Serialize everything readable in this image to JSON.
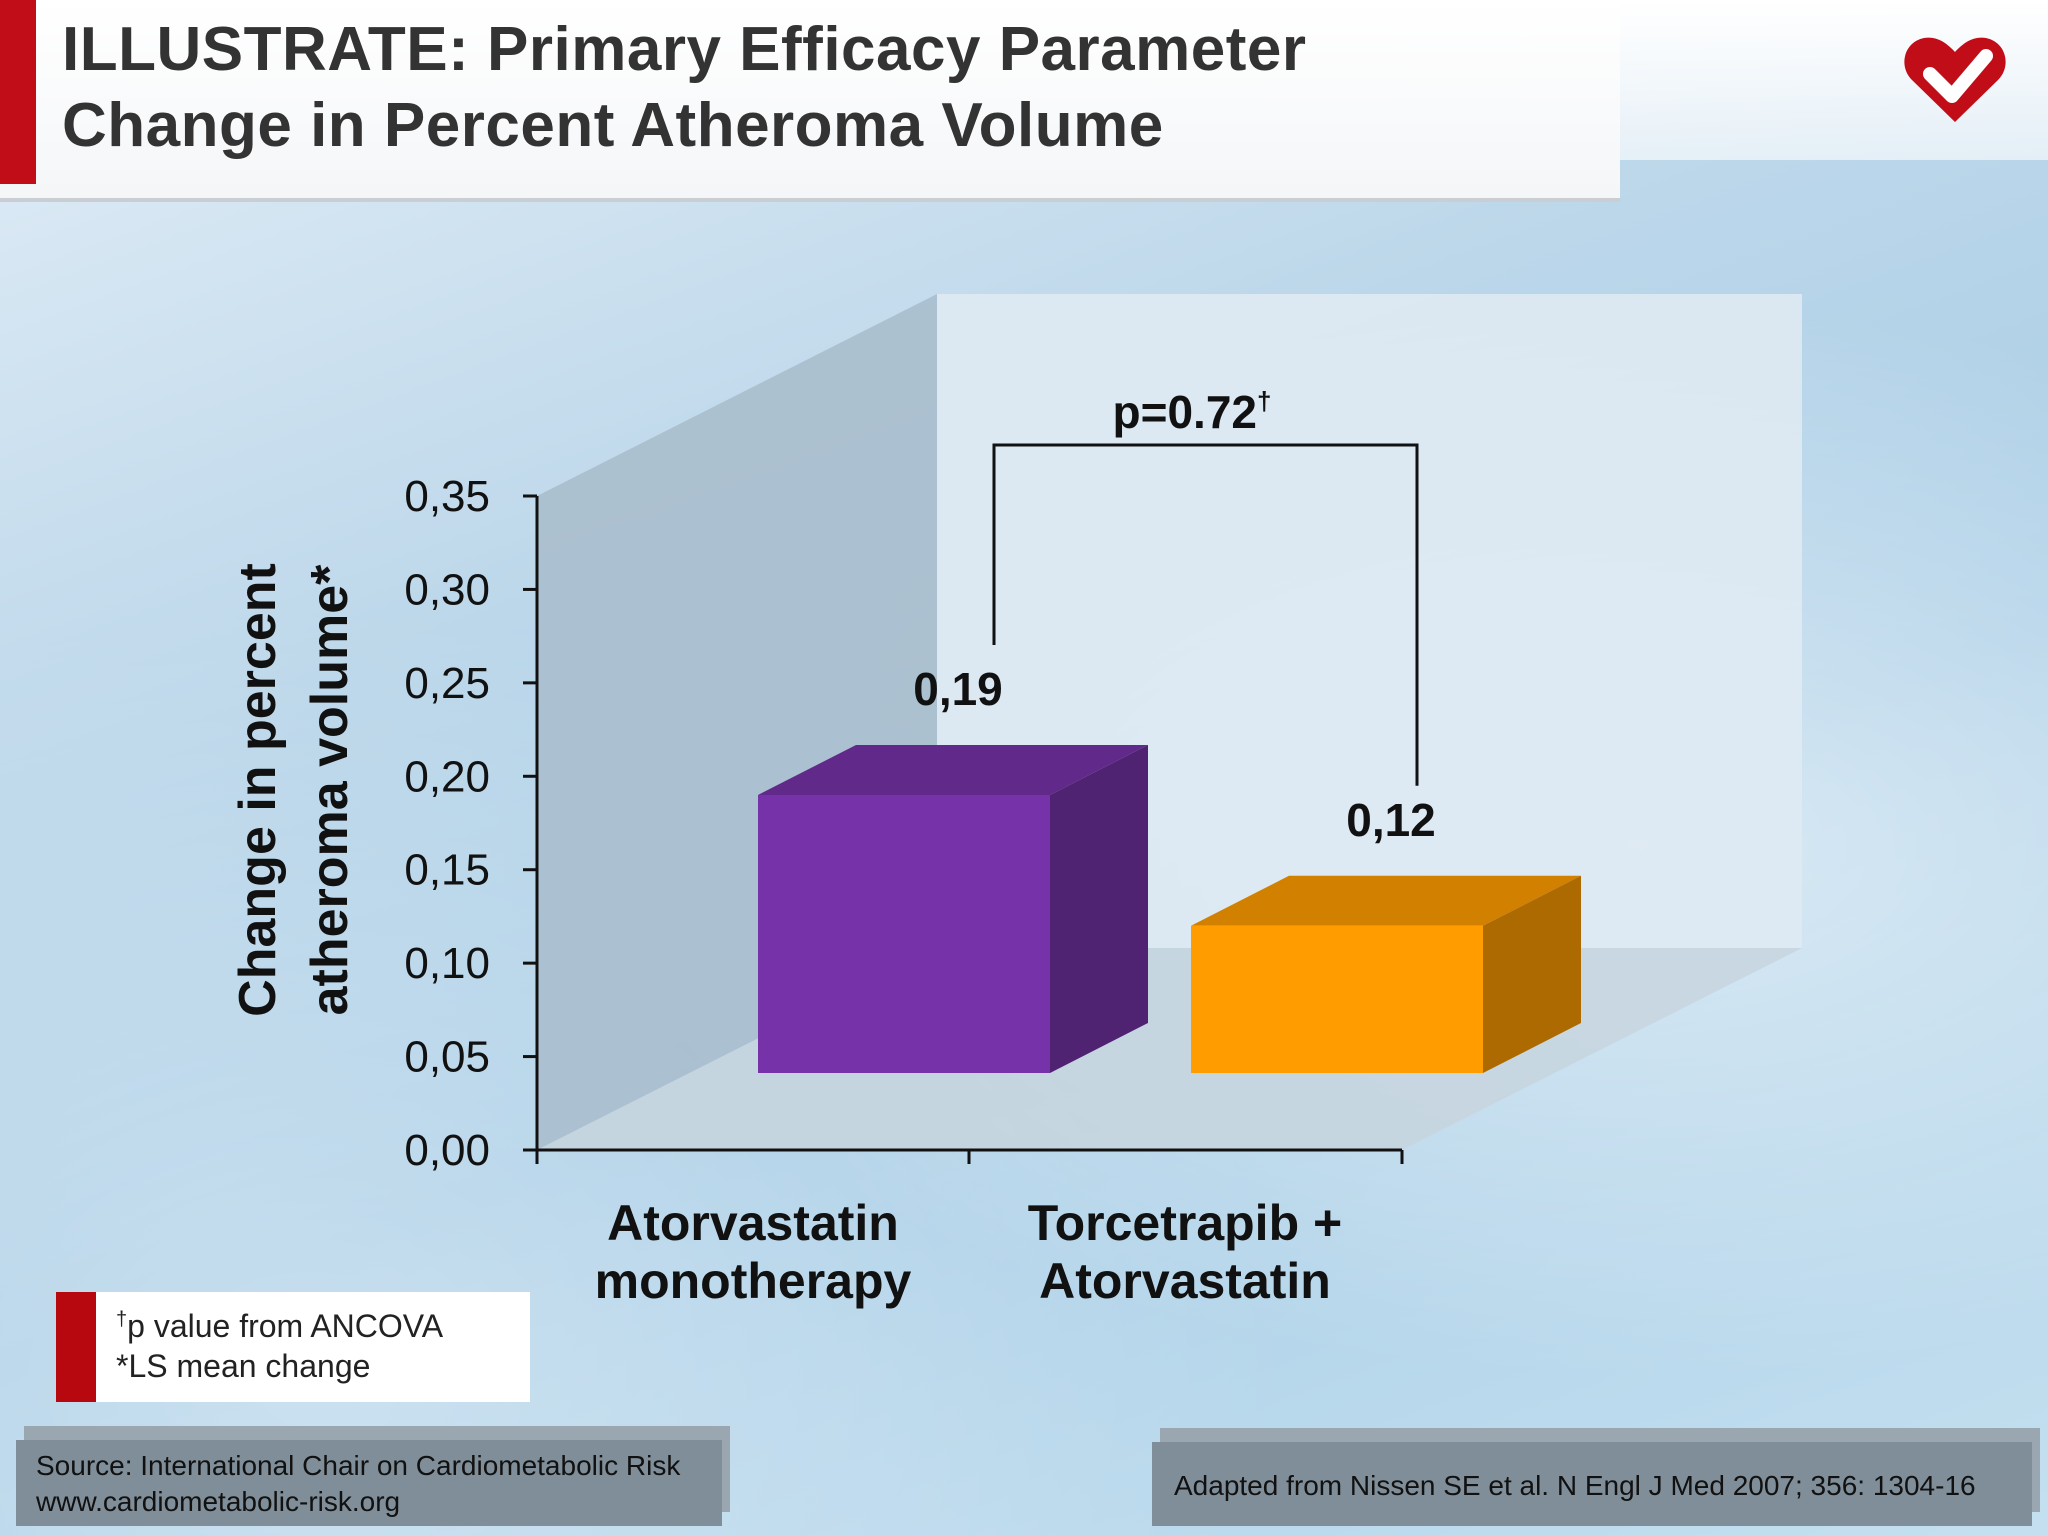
{
  "header": {
    "title_line1": "ILLUSTRATE: Primary Efficacy Parameter",
    "title_line2": "Change in Percent Atheroma Volume"
  },
  "logo": {
    "icon": "heart-check-icon",
    "color": "#c00d18"
  },
  "chart_data": {
    "type": "bar",
    "categories": [
      "Atorvastatin monotherapy",
      "Torcetrapib + Atorvastatin"
    ],
    "category_lines": [
      [
        "Atorvastatin",
        "monotherapy"
      ],
      [
        "Torcetrapib +",
        "Atorvastatin"
      ]
    ],
    "values": [
      0.19,
      0.12
    ],
    "value_labels": [
      "0,19",
      "0,12"
    ],
    "colors": [
      "#7632a8",
      "#ff9c00"
    ],
    "ylabel_lines": [
      "Change in percent",
      "atheroma volume*"
    ],
    "ylim": [
      0,
      0.35
    ],
    "yticks": [
      "0,00",
      "0,05",
      "0,10",
      "0,15",
      "0,20",
      "0,25",
      "0,30",
      "0,35"
    ],
    "annotation": "p=0.72",
    "annotation_mark": "†",
    "style": "3d"
  },
  "footnotes": {
    "note1_mark": "†",
    "note1": "p value from ANCOVA",
    "note2": "*LS mean change"
  },
  "source": {
    "line1": "Source: International Chair on Cardiometabolic Risk",
    "line2": "www.cardiometabolic-risk.org"
  },
  "reference": "Adapted from Nissen SE et al. N Engl J Med 2007; 356: 1304-16"
}
